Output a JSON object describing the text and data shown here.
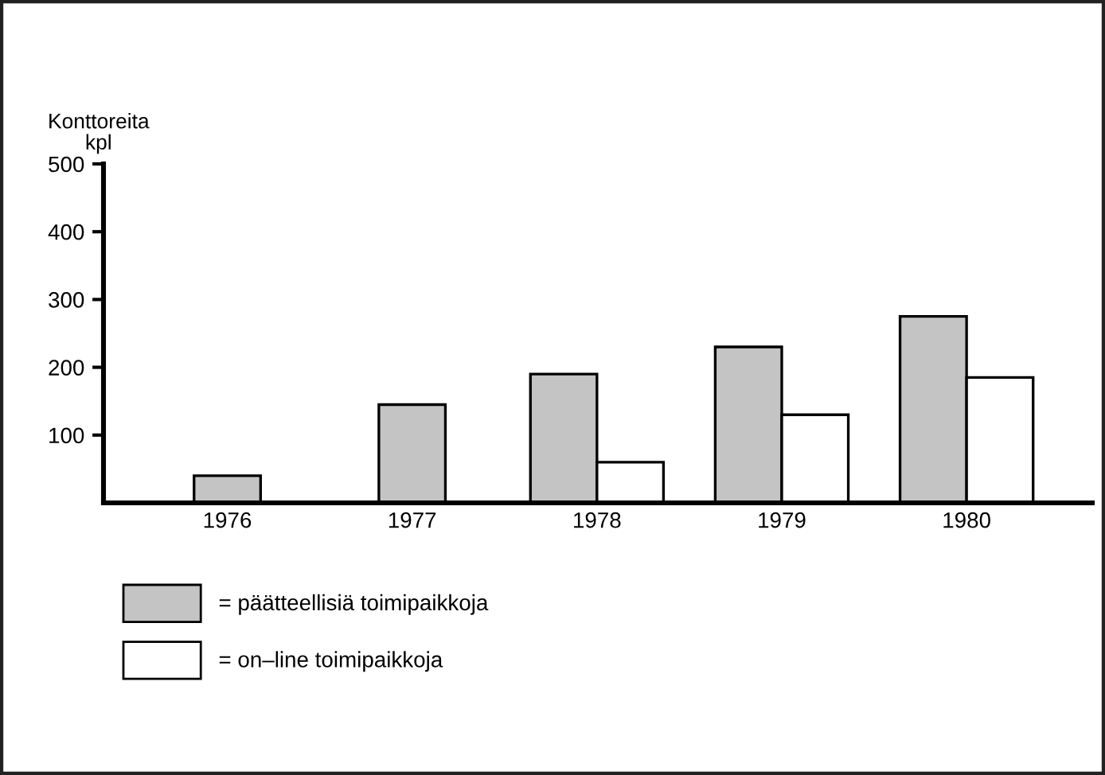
{
  "chart_data": {
    "type": "bar",
    "ylabel": "Konttoreita\nkpl",
    "categories": [
      "1976",
      "1977",
      "1978",
      "1979",
      "1980"
    ],
    "series": [
      {
        "name": "= päätteellisiä toimipaikkoja",
        "color": "#c4c4c4",
        "values": [
          40,
          145,
          190,
          230,
          275
        ]
      },
      {
        "name": "= on–line toimipaikkoja",
        "color": "#ffffff",
        "values": [
          null,
          null,
          60,
          130,
          185
        ]
      }
    ],
    "ylim": [
      0,
      500
    ],
    "yticks": [
      100,
      200,
      300,
      400,
      500
    ],
    "grid": false,
    "legend": "bottom left"
  }
}
